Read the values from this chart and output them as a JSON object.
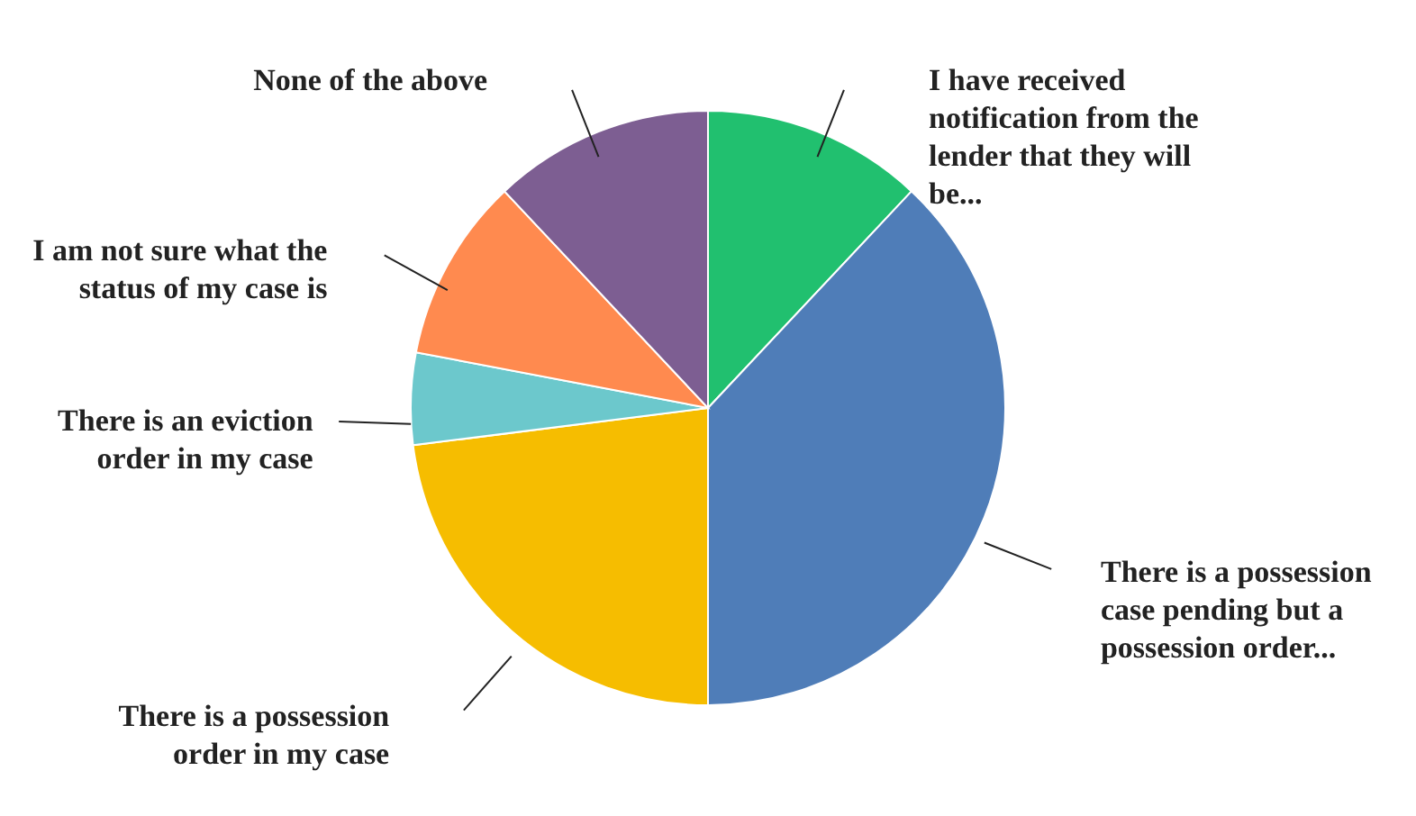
{
  "chart_data": {
    "type": "pie",
    "categories": [
      "I have received notification from the lender that they will be...",
      "There is a possession case pending but a possession order...",
      "There is a possession order in my case",
      "There is an eviction order in my case",
      "I am not sure what the status of my case is",
      "None of the above"
    ],
    "values": [
      12,
      38,
      23,
      5,
      10,
      12
    ],
    "colors": [
      "#21c06f",
      "#4f7db8",
      "#f6bd00",
      "#6cc8cc",
      "#ff8a4f",
      "#7d5e92"
    ]
  }
}
